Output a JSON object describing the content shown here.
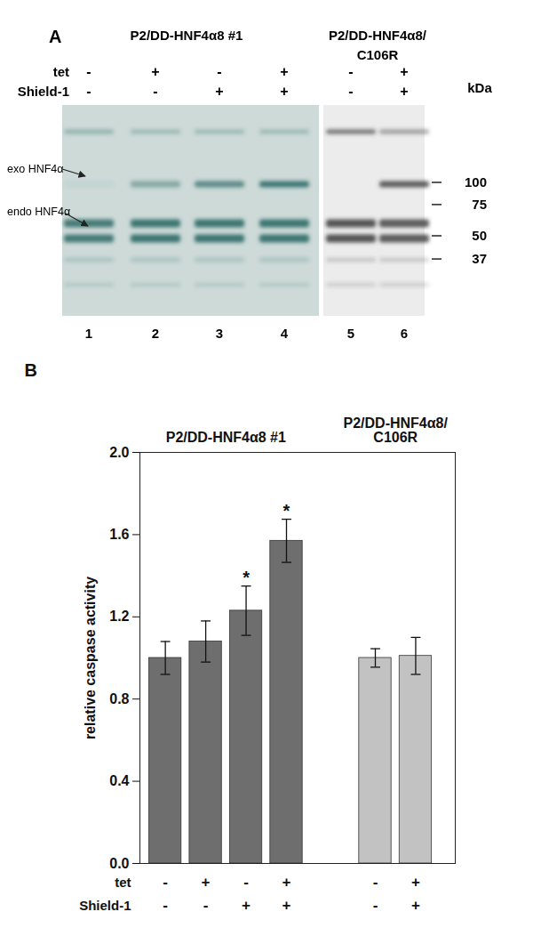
{
  "blot": {
    "label": "A",
    "groups": [
      {
        "title": [
          "P2/DD-HNF4α8 #1"
        ],
        "lanes": [
          1,
          2,
          3,
          4
        ]
      },
      {
        "title": [
          "P2/DD-HNF4α8/",
          "C106R"
        ],
        "lanes": [
          5,
          6
        ]
      }
    ],
    "conditions": [
      {
        "name": "tet",
        "signs": [
          "-",
          "+",
          "-",
          "+",
          "-",
          "+"
        ]
      },
      {
        "name": "Shield-1",
        "signs": [
          "-",
          "-",
          "+",
          "+",
          "-",
          "+"
        ]
      }
    ],
    "marker_unit": "kDa",
    "markers": [
      100,
      75,
      50,
      37
    ],
    "band_labels": [
      "exo HNF4α",
      "endo HNF4α"
    ],
    "lane_numbers": [
      1,
      2,
      3,
      4,
      5,
      6
    ]
  },
  "chart_data": {
    "type": "bar",
    "panel_label": "B",
    "ylabel": "relative caspase activity",
    "categories": [
      null,
      null,
      null,
      null,
      null,
      null
    ],
    "groups": [
      {
        "name": [
          "P2/DD-HNF4α8 #1"
        ],
        "color": "#6e6e6e",
        "values": [
          1.0,
          1.08,
          1.23,
          1.57
        ],
        "errors": [
          0.08,
          0.1,
          0.12,
          0.105
        ],
        "significance": [
          null,
          null,
          "*",
          "*"
        ]
      },
      {
        "name": [
          "P2/DD-HNF4α8/",
          "C106R"
        ],
        "color": "#c2c2c2",
        "values": [
          1.0,
          1.01
        ],
        "errors": [
          0.045,
          0.09
        ],
        "significance": [
          null,
          null
        ]
      }
    ],
    "conditions": [
      {
        "name": "tet",
        "signs": [
          "-",
          "+",
          "-",
          "+",
          "-",
          "+"
        ]
      },
      {
        "name": "Shield-1",
        "signs": [
          "-",
          "-",
          "+",
          "+",
          "-",
          "+"
        ]
      }
    ],
    "ylim": [
      0,
      2
    ],
    "yticks": [
      {
        "value": 0,
        "label": "0.0"
      },
      {
        "value": 0.4,
        "label": "0.4"
      },
      {
        "value": 0.8,
        "label": "0.8"
      },
      {
        "value": 1.2,
        "label": "1.2"
      },
      {
        "value": 1.6,
        "label": "1.6"
      },
      {
        "value": 2,
        "label": "2.0"
      }
    ],
    "grid": false
  }
}
